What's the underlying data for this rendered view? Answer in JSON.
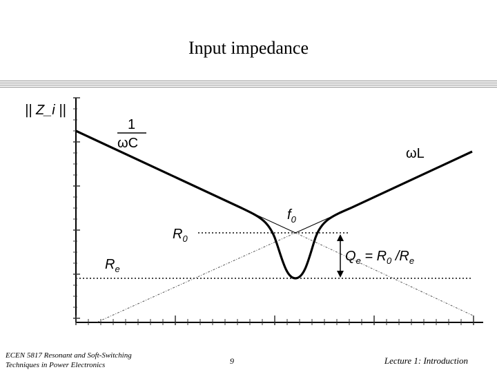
{
  "slide": {
    "title": "Input impedance",
    "footer_left_line1": "ECEN 5817  Resonant and Soft-Switching",
    "footer_left_line2": "Techniques in Power Electronics",
    "page_number": "9",
    "footer_right": "Lecture 1: Introduction"
  },
  "diagram": {
    "y_axis_label": "|| Z_i ||",
    "label_1_over_wC_num": "1",
    "label_1_over_wC_den": "ωC",
    "label_wL": "ωL",
    "label_f0": "f",
    "label_f0_sub": "0",
    "label_R0": "R",
    "label_R0_sub": "0",
    "label_Re": "R",
    "label_Re_sub": "e",
    "label_Qe": "Q",
    "label_Qe_sub": "e",
    "label_eq": " = R",
    "label_eq_sub": "0",
    "label_div": " /R",
    "label_div_sub": "e"
  }
}
